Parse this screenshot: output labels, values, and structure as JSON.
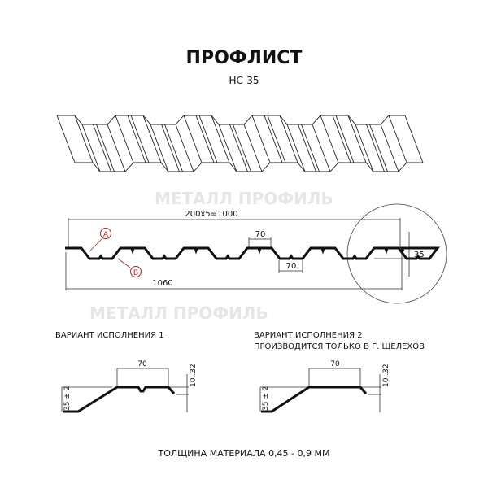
{
  "header": {
    "title": "ПРОФЛИСТ",
    "model": "НС-35"
  },
  "watermark": {
    "text": "МЕТАЛЛ ПРОФИЛЬ"
  },
  "profile": {
    "span_label": "200x5=1000",
    "width_label": "1060",
    "top_shelf_label": "70",
    "bottom_shelf_label": "70",
    "height_label": "35",
    "marker_a": "A",
    "marker_b": "B",
    "marker_color": "#b22222"
  },
  "variants": [
    {
      "title": "ВАРИАНТ ИСПОЛНЕНИЯ 1",
      "subtitle": "",
      "shelf_label": "70",
      "height_label": "35 ± 2",
      "edge_label": "10..32",
      "has_groove": true
    },
    {
      "title": "ВАРИАНТ ИСПОЛНЕНИЯ 2",
      "subtitle": "ПРОИЗВОДИТСЯ ТОЛЬКО В Г. ШЕЛЕХОВ",
      "shelf_label": "70",
      "height_label": "35 ± 2",
      "edge_label": "10..32",
      "has_groove": false
    }
  ],
  "footer": {
    "thickness": "ТОЛЩИНА МАТЕРИАЛА 0,45 - 0,9 ММ"
  }
}
